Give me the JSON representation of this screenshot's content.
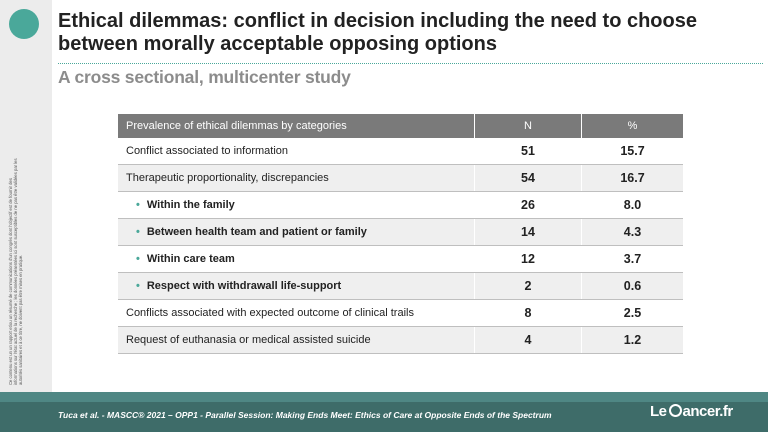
{
  "slide": {
    "title": "Ethical dilemmas: conflict in decision including the need to choose between morally acceptable opposing options",
    "subtitle": "A cross sectional, multicenter study",
    "side_note": "Ce contenu est un un rapport et/ou un résumé de communications d'un congrès dont l'objectif est de fournir des informations sur l'état actuel de la recherche ; les données présentées ici sont susceptibles de ne pas être validées par les autorités sanitaires et à ce titre, ne doivent pas être mises en pratique.",
    "footer": "Tuca et al. - MASCC® 2021 – OPP1 - Parallel Session: Making Ends Meet: Ethics of Care at Opposite Ends of the Spectrum",
    "logo": {
      "prefix": "Le",
      "suffix": "ancer.fr"
    },
    "accent_color": "#4aa89a"
  },
  "table": {
    "headers": [
      "Prevalence of ethical dilemmas by categories",
      "N",
      "%"
    ],
    "rows": [
      {
        "category": "Conflict associated to information",
        "n": "51",
        "pct": "15.7"
      },
      {
        "category": "Therapeutic proportionality, discrepancies",
        "n": "54",
        "pct": "16.7"
      },
      {
        "category": "Within the family",
        "n": "26",
        "pct": "8.0"
      },
      {
        "category": "Between health team and patient or family",
        "n": "14",
        "pct": "4.3"
      },
      {
        "category": "Within care team",
        "n": "12",
        "pct": "3.7"
      },
      {
        "category": "Respect with withdrawall life-support",
        "n": "2",
        "pct": "0.6"
      },
      {
        "category": "Conflicts associated with expected outcome of clinical trails",
        "n": "8",
        "pct": "2.5"
      },
      {
        "category": "Request of euthanasia or medical assisted suicide",
        "n": "4",
        "pct": "1.2"
      }
    ]
  }
}
